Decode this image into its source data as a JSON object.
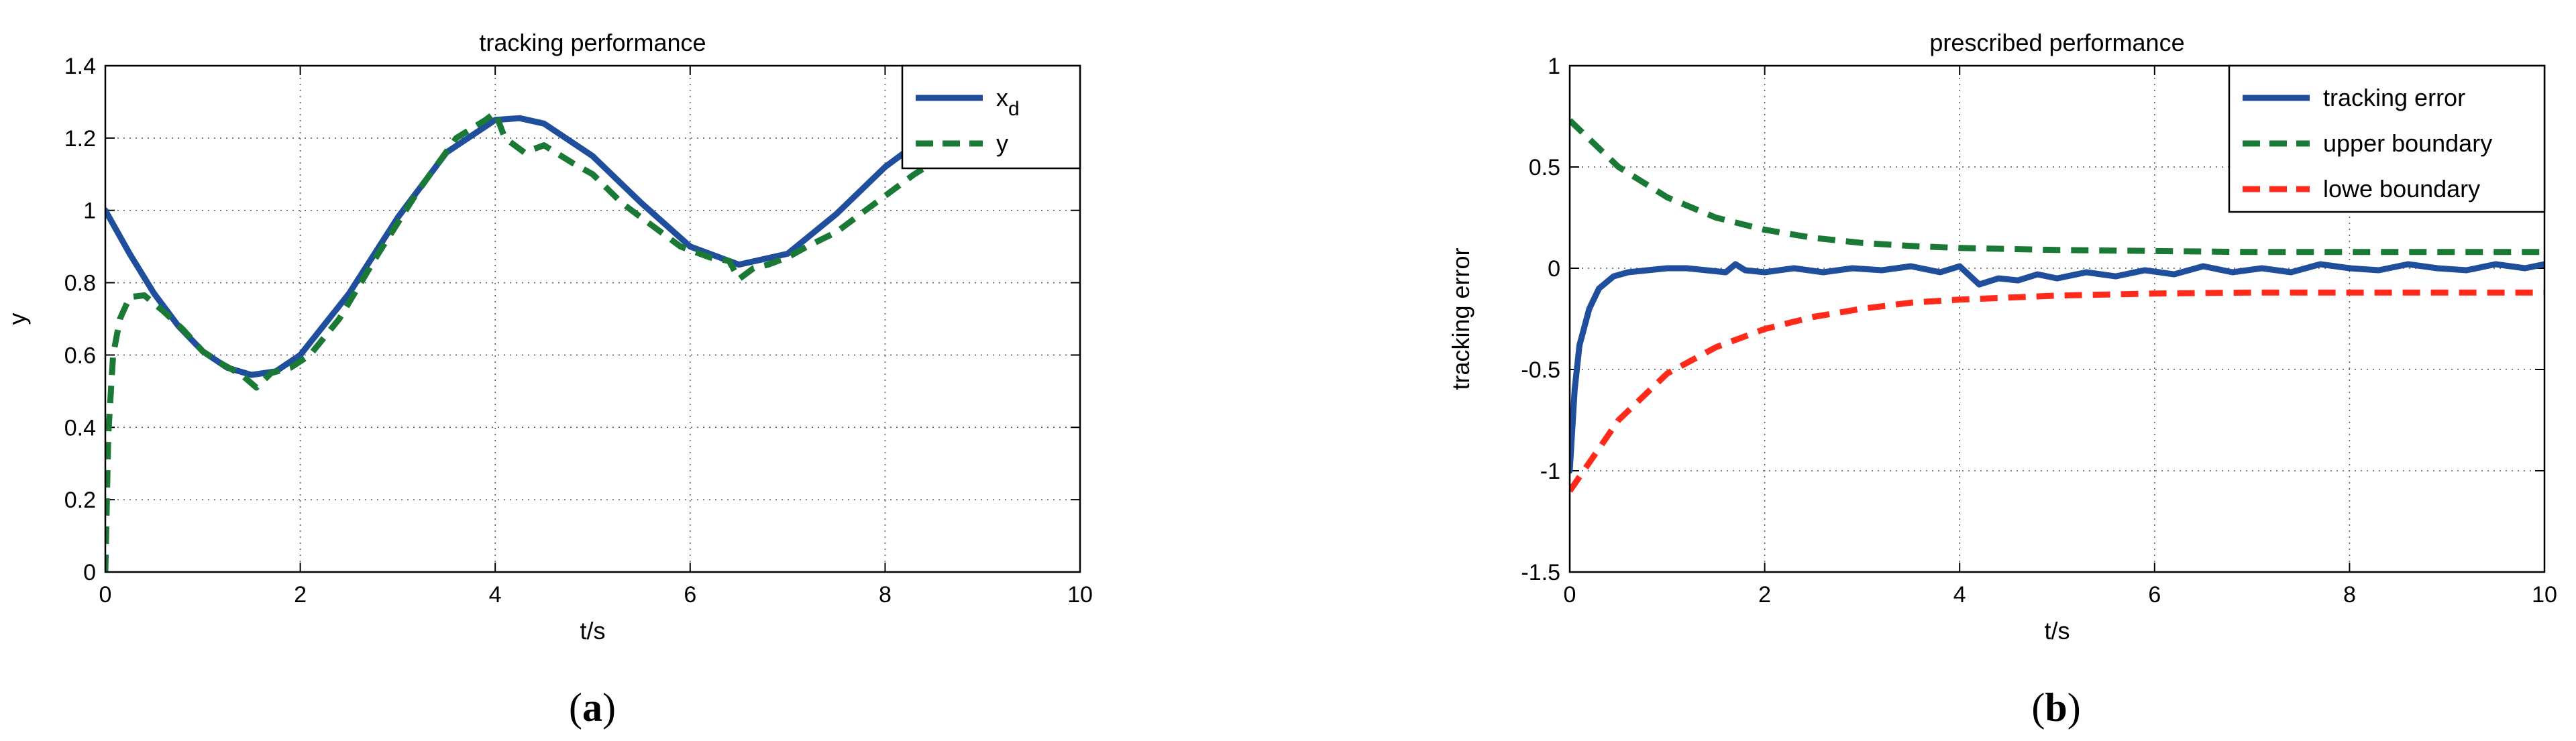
{
  "chart_data": [
    {
      "type": "line",
      "title": "tracking performance",
      "xlabel": "t/s",
      "ylabel": "y",
      "xlim": [
        0,
        10
      ],
      "ylim": [
        0,
        1.4
      ],
      "xticks": [
        "0",
        "2",
        "4",
        "6",
        "8",
        "10"
      ],
      "yticks": [
        "0",
        "0.2",
        "0.4",
        "0.6",
        "0.8",
        "1",
        "1.2",
        "1.4"
      ],
      "grid": true,
      "legend_position": "top-right",
      "panel_label": "(a)",
      "series": [
        {
          "name": "x",
          "name_subscript": "d",
          "color": "#1f4e9c",
          "style": "solid",
          "x": [
            0,
            0.25,
            0.5,
            0.75,
            1.0,
            1.25,
            1.5,
            1.75,
            2.0,
            2.5,
            3.0,
            3.5,
            4.0,
            4.25,
            4.5,
            5.0,
            5.5,
            6.0,
            6.5,
            7.0,
            7.5,
            8.0,
            8.5,
            9.0,
            9.5,
            10.0
          ],
          "y": [
            1.0,
            0.88,
            0.77,
            0.68,
            0.61,
            0.565,
            0.545,
            0.555,
            0.6,
            0.77,
            0.98,
            1.16,
            1.25,
            1.255,
            1.24,
            1.15,
            1.02,
            0.9,
            0.85,
            0.88,
            0.99,
            1.12,
            1.22,
            1.27,
            1.26,
            1.2
          ]
        },
        {
          "name": "y",
          "color": "#1a7a35",
          "style": "dashed",
          "x": [
            0,
            0.03,
            0.08,
            0.15,
            0.25,
            0.4,
            0.6,
            0.8,
            1.0,
            1.2,
            1.4,
            1.55,
            1.7,
            1.9,
            2.1,
            2.4,
            2.8,
            3.2,
            3.6,
            3.9,
            4.0,
            4.1,
            4.3,
            4.5,
            4.8,
            5.0,
            5.3,
            5.6,
            5.9,
            6.2,
            6.4,
            6.5,
            6.65,
            6.8,
            7.0,
            7.2,
            7.5,
            7.8,
            8.0,
            8.3,
            8.6,
            9.0,
            9.5,
            10.0
          ],
          "y": [
            0.0,
            0.38,
            0.6,
            0.7,
            0.76,
            0.765,
            0.72,
            0.67,
            0.61,
            0.575,
            0.545,
            0.51,
            0.55,
            0.565,
            0.6,
            0.7,
            0.88,
            1.05,
            1.2,
            1.25,
            1.27,
            1.2,
            1.16,
            1.18,
            1.13,
            1.1,
            1.02,
            0.96,
            0.9,
            0.87,
            0.86,
            0.81,
            0.84,
            0.85,
            0.87,
            0.9,
            0.94,
            1.0,
            1.04,
            1.1,
            1.15,
            1.21,
            1.24,
            1.22
          ]
        }
      ]
    },
    {
      "type": "line",
      "title": "prescribed performance",
      "xlabel": "t/s",
      "ylabel": "tracking error",
      "xlim": [
        0,
        10
      ],
      "ylim": [
        -1.5,
        1
      ],
      "xticks": [
        "0",
        "2",
        "4",
        "6",
        "8",
        "10"
      ],
      "yticks": [
        "-1.5",
        "-1",
        "-0.5",
        "0",
        "0.5",
        "1"
      ],
      "grid": true,
      "legend_position": "top-right",
      "panel_label": "(b)",
      "series": [
        {
          "name": "tracking error",
          "color": "#1f4e9c",
          "style": "solid",
          "x": [
            0,
            0.05,
            0.1,
            0.2,
            0.3,
            0.45,
            0.6,
            0.8,
            1.0,
            1.2,
            1.4,
            1.6,
            1.7,
            1.8,
            2.0,
            2.3,
            2.6,
            2.9,
            3.2,
            3.5,
            3.8,
            4.0,
            4.2,
            4.4,
            4.6,
            4.8,
            5.0,
            5.3,
            5.6,
            5.9,
            6.2,
            6.5,
            6.8,
            7.1,
            7.4,
            7.7,
            8.0,
            8.3,
            8.6,
            8.9,
            9.2,
            9.5,
            9.8,
            10.0
          ],
          "y": [
            -1.0,
            -0.6,
            -0.38,
            -0.2,
            -0.1,
            -0.04,
            -0.02,
            -0.01,
            0.0,
            0.0,
            -0.01,
            -0.02,
            0.02,
            -0.01,
            -0.02,
            0.0,
            -0.02,
            0.0,
            -0.01,
            0.01,
            -0.02,
            0.01,
            -0.08,
            -0.05,
            -0.06,
            -0.03,
            -0.05,
            -0.02,
            -0.04,
            -0.01,
            -0.03,
            0.01,
            -0.02,
            0.0,
            -0.02,
            0.02,
            0.0,
            -0.01,
            0.02,
            0.0,
            -0.01,
            0.02,
            0.0,
            0.02
          ]
        },
        {
          "name": "upper boundary",
          "color": "#1a7a35",
          "style": "dashed",
          "x": [
            0,
            0.5,
            1.0,
            1.5,
            2.0,
            2.5,
            3.0,
            3.5,
            4.0,
            4.5,
            5.0,
            6.0,
            7.0,
            8.0,
            9.0,
            10.0
          ],
          "y": [
            0.73,
            0.5,
            0.35,
            0.25,
            0.19,
            0.15,
            0.125,
            0.11,
            0.1,
            0.095,
            0.09,
            0.085,
            0.08,
            0.08,
            0.08,
            0.08
          ]
        },
        {
          "name": "lowe boundary",
          "color": "#ff2a1a",
          "style": "dashed",
          "x": [
            0,
            0.5,
            1.0,
            1.5,
            2.0,
            2.5,
            3.0,
            3.5,
            4.0,
            4.5,
            5.0,
            6.0,
            7.0,
            8.0,
            9.0,
            10.0
          ],
          "y": [
            -1.1,
            -0.75,
            -0.52,
            -0.39,
            -0.3,
            -0.24,
            -0.2,
            -0.17,
            -0.155,
            -0.145,
            -0.135,
            -0.125,
            -0.12,
            -0.12,
            -0.12,
            -0.12
          ]
        }
      ]
    }
  ]
}
